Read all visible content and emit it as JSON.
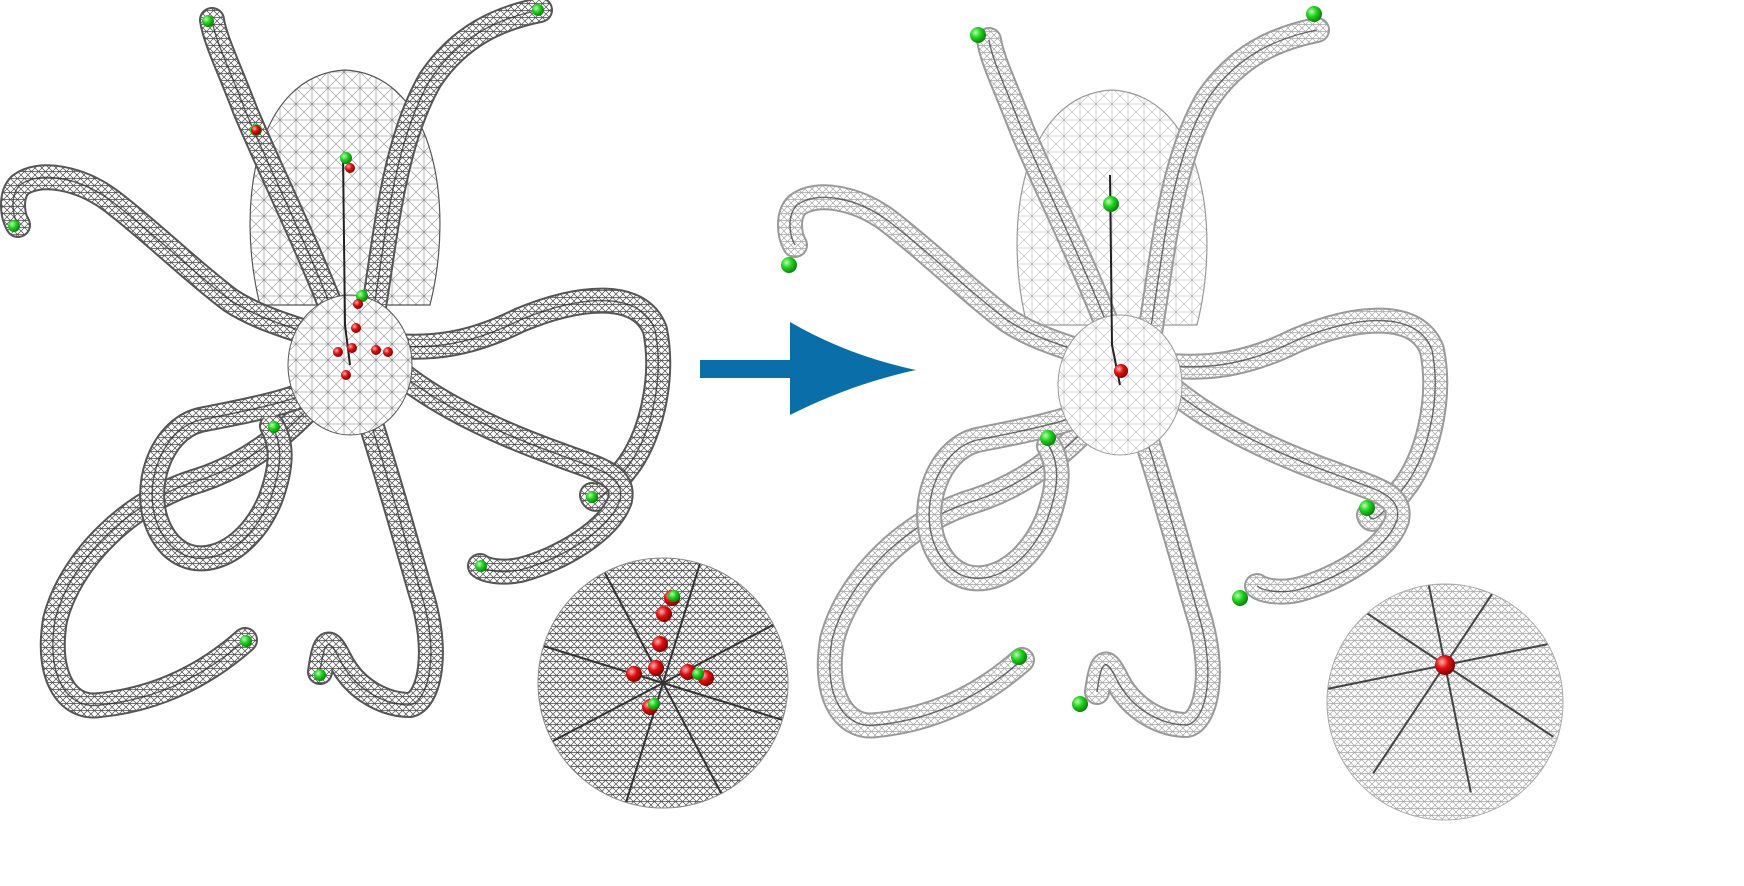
{
  "figure": {
    "panels": [
      {
        "key": "before",
        "inset": "zoomed-center-before",
        "arm_tips": "green-spheres",
        "junction_nodes": "red-spheres-many"
      },
      {
        "key": "after",
        "inset": "zoomed-center-after",
        "arm_tips": "green-spheres",
        "junction_nodes": "red-sphere-single"
      }
    ],
    "arrow_icon": "right-arrow-icon"
  },
  "colors": {
    "arrow": "#0a6fa8",
    "mesh_before": "#555555",
    "mesh_after": "#9a9a9a",
    "node_tip": "#22d31f",
    "node_junction": "#e01010",
    "skeleton_line": "#222222"
  }
}
